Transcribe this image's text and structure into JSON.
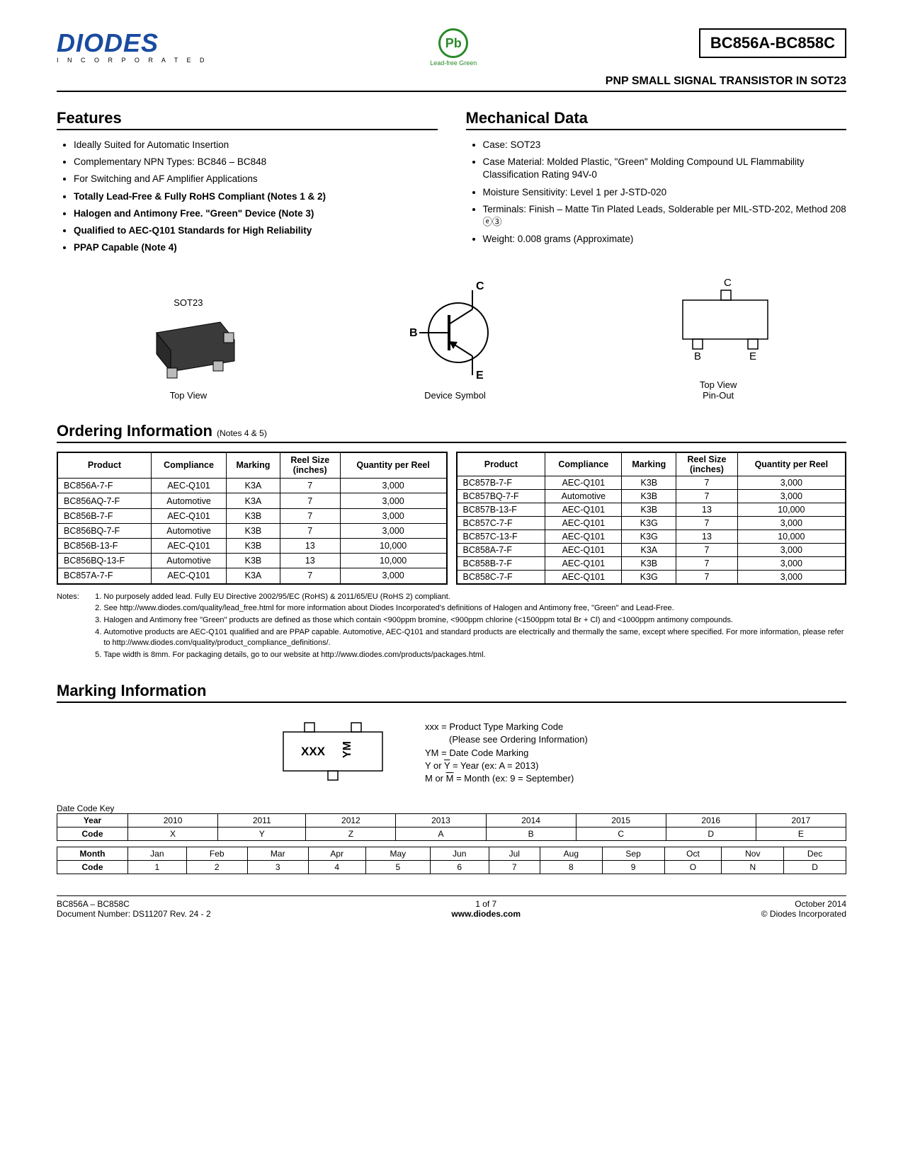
{
  "header": {
    "logo_text": "DIODES",
    "logo_sub": "I N C O R P O R A T E D",
    "pbfree_symbol": "Pb",
    "pbfree_label": "Lead-free Green",
    "part_number": "BC856A-BC858C",
    "subtitle": "PNP SMALL SIGNAL TRANSISTOR IN SOT23"
  },
  "features": {
    "title": "Features",
    "items": [
      {
        "text": "Ideally Suited for Automatic Insertion",
        "bold": false
      },
      {
        "text": "Complementary NPN Types: BC846 – BC848",
        "bold": false
      },
      {
        "text": "For Switching and AF Amplifier Applications",
        "bold": false
      },
      {
        "text": "Totally Lead-Free & Fully RoHS Compliant (Notes 1 & 2)",
        "bold": true
      },
      {
        "text": "Halogen and Antimony Free. \"Green\" Device (Note 3)",
        "bold": true
      },
      {
        "text": "Qualified to AEC-Q101 Standards for High Reliability",
        "bold": true
      },
      {
        "text": "PPAP Capable (Note 4)",
        "bold": true
      }
    ]
  },
  "mechanical": {
    "title": "Mechanical Data",
    "items": [
      {
        "text": "Case: SOT23"
      },
      {
        "text": "Case Material: Molded Plastic, \"Green\" Molding Compound UL Flammability Classification Rating 94V-0"
      },
      {
        "text": "Moisture Sensitivity: Level 1 per J-STD-020"
      },
      {
        "text": "Terminals: Finish – Matte Tin Plated Leads, Solderable per MIL-STD-202, Method 208 ⓔ③"
      },
      {
        "text": "Weight: 0.008 grams (Approximate)"
      }
    ]
  },
  "diagrams": {
    "sot23_label": "SOT23",
    "sot23_caption": "Top View",
    "symbol_caption": "Device Symbol",
    "symbol_c": "C",
    "symbol_b": "B",
    "symbol_e": "E",
    "pinout_caption": "Top View\nPin-Out",
    "pinout_c": "C",
    "pinout_b": "B",
    "pinout_e": "E"
  },
  "ordering": {
    "title": "Ordering Information",
    "title_note": "(Notes 4 & 5)",
    "columns": [
      "Product",
      "Compliance",
      "Marking",
      "Reel Size (inches)",
      "Quantity per Reel"
    ],
    "left_rows": [
      [
        "BC856A-7-F",
        "AEC-Q101",
        "K3A",
        "7",
        "3,000"
      ],
      [
        "BC856AQ-7-F",
        "Automotive",
        "K3A",
        "7",
        "3,000"
      ],
      [
        "BC856B-7-F",
        "AEC-Q101",
        "K3B",
        "7",
        "3,000"
      ],
      [
        "BC856BQ-7-F",
        "Automotive",
        "K3B",
        "7",
        "3,000"
      ],
      [
        "BC856B-13-F",
        "AEC-Q101",
        "K3B",
        "13",
        "10,000"
      ],
      [
        "BC856BQ-13-F",
        "Automotive",
        "K3B",
        "13",
        "10,000"
      ],
      [
        "BC857A-7-F",
        "AEC-Q101",
        "K3A",
        "7",
        "3,000"
      ]
    ],
    "right_rows": [
      [
        "BC857B-7-F",
        "AEC-Q101",
        "K3B",
        "7",
        "3,000"
      ],
      [
        "BC857BQ-7-F",
        "Automotive",
        "K3B",
        "7",
        "3,000"
      ],
      [
        "BC857B-13-F",
        "AEC-Q101",
        "K3B",
        "13",
        "10,000"
      ],
      [
        "BC857C-7-F",
        "AEC-Q101",
        "K3G",
        "7",
        "3,000"
      ],
      [
        "BC857C-13-F",
        "AEC-Q101",
        "K3G",
        "13",
        "10,000"
      ],
      [
        "BC858A-7-F",
        "AEC-Q101",
        "K3A",
        "7",
        "3,000"
      ],
      [
        "BC858B-7-F",
        "AEC-Q101",
        "K3B",
        "7",
        "3,000"
      ],
      [
        "BC858C-7-F",
        "AEC-Q101",
        "K3G",
        "7",
        "3,000"
      ]
    ]
  },
  "notes": {
    "label": "Notes:",
    "items": [
      "No purposely added lead. Fully EU Directive 2002/95/EC (RoHS) & 2011/65/EU (RoHS 2) compliant.",
      "See http://www.diodes.com/quality/lead_free.html for more information about Diodes Incorporated's definitions of Halogen and Antimony free, \"Green\" and Lead-Free.",
      "Halogen and Antimony free \"Green\" products are defined as those which contain <900ppm bromine, <900ppm chlorine (<1500ppm total Br + Cl) and <1000ppm antimony compounds.",
      "Automotive products are AEC-Q101 qualified and are PPAP capable.  Automotive, AEC-Q101 and standard products are electrically and thermally the same, except where specified.  For more information, please refer to http://www.diodes.com/quality/product_compliance_definitions/.",
      "Tape width is 8mm. For packaging details, go to our website at http://www.diodes.com/products/packages.html."
    ]
  },
  "marking": {
    "title": "Marking Information",
    "legend_xxx": "xxx = Product Type Marking Code",
    "legend_xxx2": "(Please see Ordering Information)",
    "legend_ym": "YM = Date Code Marking",
    "legend_y": "Y or Y̅ = Year (ex: A = 2013)",
    "legend_m": "M or M̅ = Month (ex: 9 = September)",
    "chip_xxx": "XXX",
    "chip_ym": "YM"
  },
  "datecode": {
    "label": "Date Code Key",
    "year_head": "Year",
    "year_vals": [
      "2010",
      "2011",
      "2012",
      "2013",
      "2014",
      "2015",
      "2016",
      "2017"
    ],
    "year_code_head": "Code",
    "year_codes": [
      "X",
      "Y",
      "Z",
      "A",
      "B",
      "C",
      "D",
      "E"
    ],
    "month_head": "Month",
    "month_vals": [
      "Jan",
      "Feb",
      "Mar",
      "Apr",
      "May",
      "Jun",
      "Jul",
      "Aug",
      "Sep",
      "Oct",
      "Nov",
      "Dec"
    ],
    "month_code_head": "Code",
    "month_codes": [
      "1",
      "2",
      "3",
      "4",
      "5",
      "6",
      "7",
      "8",
      "9",
      "O",
      "N",
      "D"
    ]
  },
  "footer": {
    "left1": "BC856A – BC858C",
    "left2": "Document Number: DS11207 Rev. 24 - 2",
    "center1": "1 of 7",
    "center2": "www.diodes.com",
    "right1": "October 2014",
    "right2": "© Diodes Incorporated"
  }
}
